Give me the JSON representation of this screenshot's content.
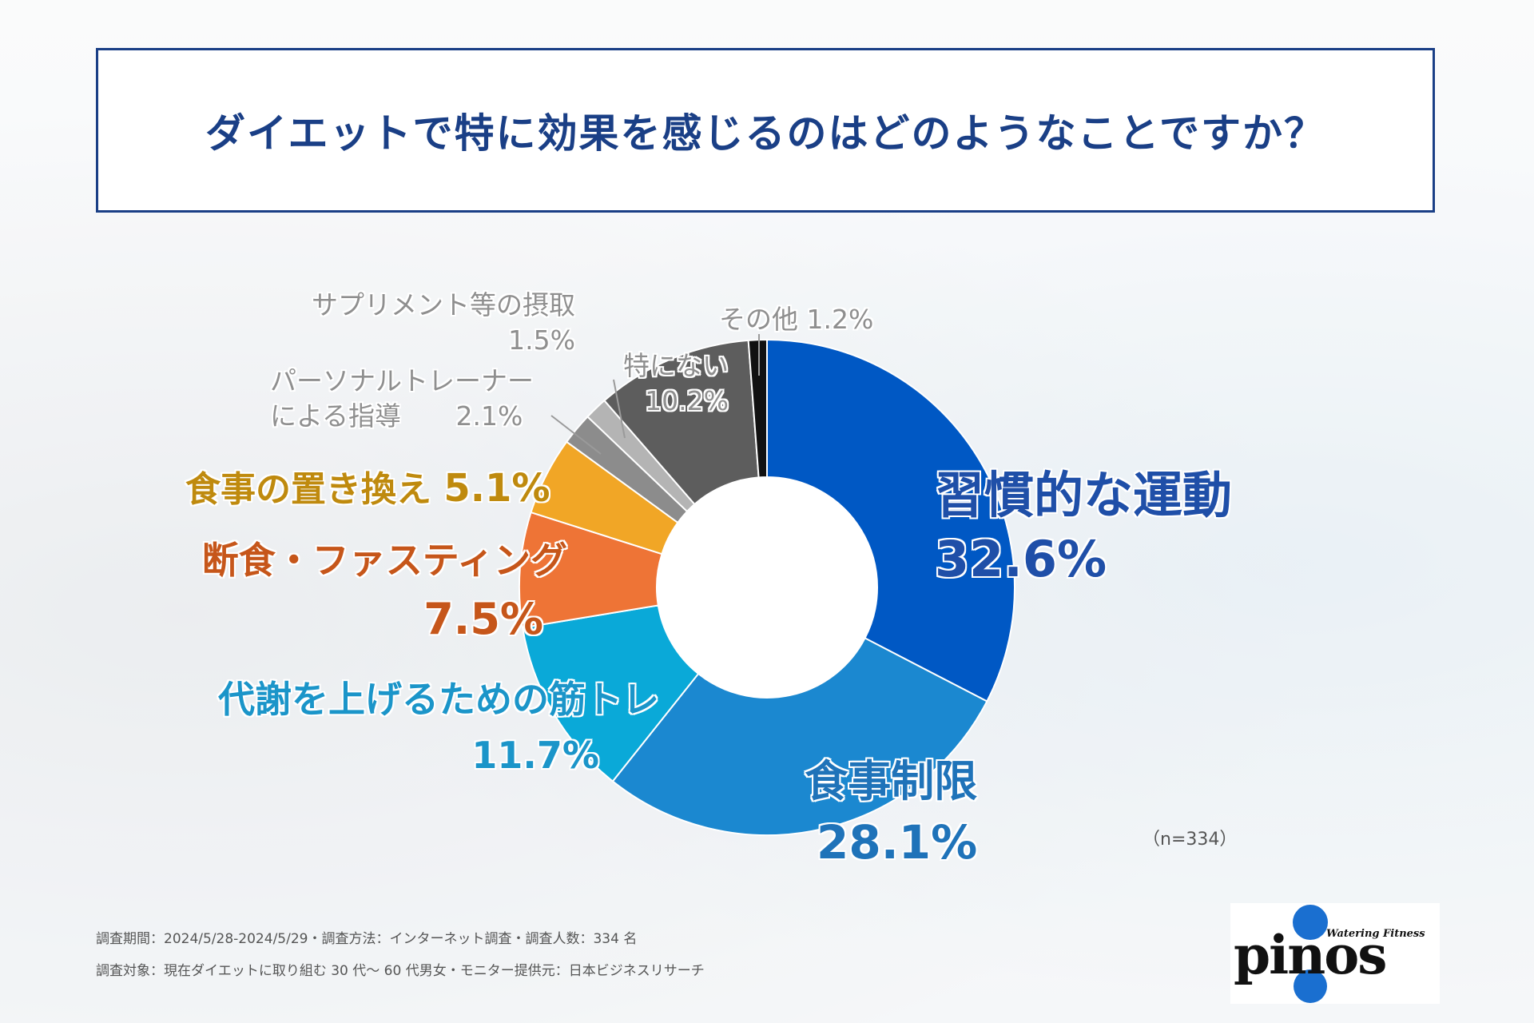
{
  "title": "ダイエットで特に効果を感じるのはどのようなことですか？",
  "sample_size": "（n=334）",
  "footnotes": [
    "調査期間：2024/5/28-2024/5/29・調査方法：インターネット調査・調査人数：334 名",
    "調査対象：現在ダイエットに取り組む 30 代～ 60 代男女・モニター提供元：日本ビジネスリサーチ"
  ],
  "logo": {
    "brand": "pinos",
    "tagline": "Watering Fitness"
  },
  "labels": {
    "exercise": {
      "name": "習慣的な運動",
      "pct": "32.6%"
    },
    "diet": {
      "name": "食事制限",
      "pct": "28.1%"
    },
    "muscle": {
      "name": "代謝を上げるための筋トレ",
      "pct": "11.7%"
    },
    "fasting": {
      "name": "断食・ファスティング",
      "pct": "7.5%"
    },
    "replace": {
      "name": "食事の置き換え",
      "pct": "5.1%"
    },
    "trainer": {
      "name1": "パーソナルトレーナー",
      "name2": "による指導",
      "pct": "2.1%"
    },
    "supp": {
      "name": "サプリメント等の摂取",
      "pct": "1.5%"
    },
    "none": {
      "name": "特にない",
      "pct": "10.2%"
    },
    "other": {
      "name": "その他",
      "pct": "1.2%"
    }
  },
  "chart_data": {
    "type": "pie",
    "title": "ダイエットで特に効果を感じるのはどのようなことですか？",
    "n": 334,
    "categories": [
      "習慣的な運動",
      "食事制限",
      "代謝を上げるための筋トレ",
      "断食・ファスティング",
      "食事の置き換え",
      "パーソナルトレーナーによる指導",
      "サプリメント等の摂取",
      "特にない",
      "その他"
    ],
    "values": [
      32.6,
      28.1,
      11.7,
      7.5,
      5.1,
      2.1,
      1.5,
      10.2,
      1.2
    ],
    "colors": [
      "#0058c4",
      "#1b88d0",
      "#0aa9d8",
      "#ee7436",
      "#f1a626",
      "#8c8c8c",
      "#b4b4b4",
      "#5d5d5d",
      "#111111"
    ],
    "donut": true,
    "start": "12 o'clock, clockwise"
  }
}
